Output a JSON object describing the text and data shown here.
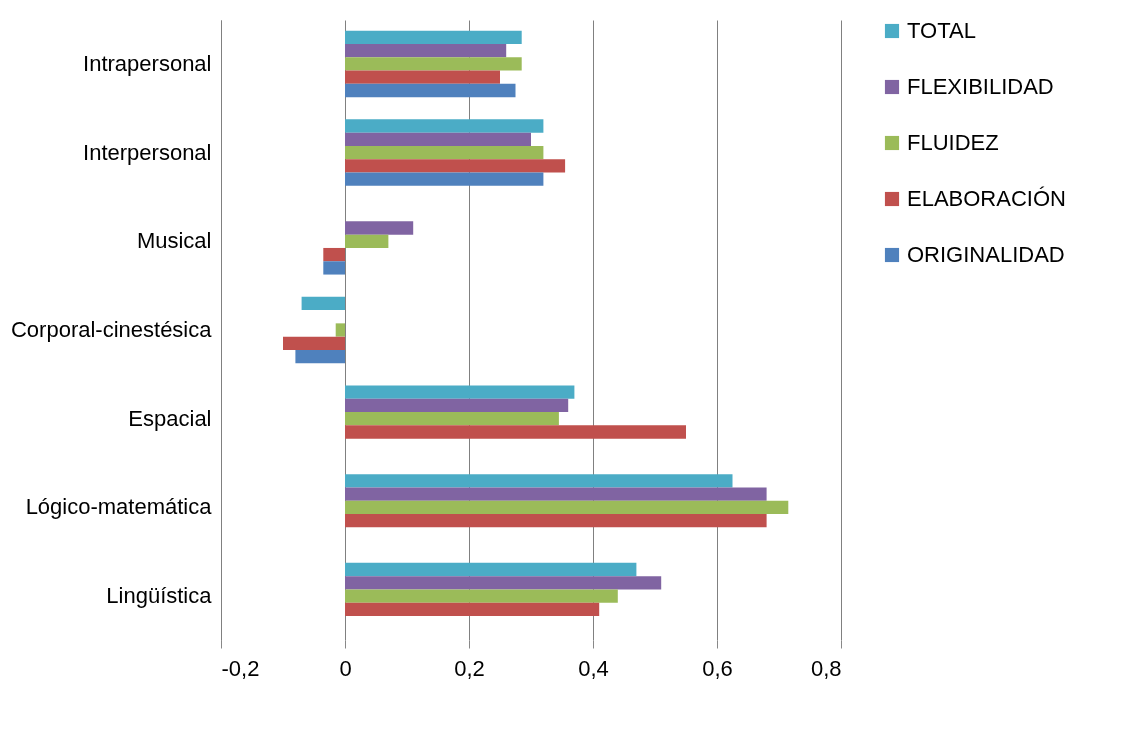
{
  "chart_data": {
    "type": "bar",
    "orientation": "horizontal",
    "categories": [
      "Intrapersonal",
      "Interpersonal",
      "Musical",
      "Corporal-cinestésica",
      "Espacial",
      "Lógico-matemática",
      "Lingüística"
    ],
    "series": [
      {
        "name": "TOTAL",
        "color": "#4bacc6",
        "values": [
          0.285,
          0.32,
          0,
          -0.07,
          0.37,
          0.625,
          0.47
        ]
      },
      {
        "name": "FLEXIBILIDAD",
        "color": "#8064a2",
        "values": [
          0.26,
          0.3,
          0.11,
          0,
          0.36,
          0.68,
          0.51
        ]
      },
      {
        "name": "FLUIDEZ",
        "color": "#9bbb59",
        "values": [
          0.285,
          0.32,
          0.07,
          -0.015,
          0.345,
          0.715,
          0.44
        ]
      },
      {
        "name": "ELABORACIÓN",
        "color": "#c0504d",
        "values": [
          0.25,
          0.355,
          -0.035,
          -0.1,
          0.55,
          0.68,
          0.41
        ]
      },
      {
        "name": "ORIGINALIDAD",
        "color": "#4f81bd",
        "values": [
          0.275,
          0.32,
          -0.035,
          -0.08,
          0,
          0,
          0
        ]
      }
    ],
    "xlim": [
      -0.2,
      0.8
    ],
    "xticks": [
      {
        "value": -0.2,
        "label": "-0,2"
      },
      0,
      {
        "value": 0.2,
        "label": "0,2"
      },
      {
        "value": 0.4,
        "label": "0,4"
      },
      {
        "value": 0.6,
        "label": "0,6"
      },
      {
        "value": 0.8,
        "label": "0,8"
      }
    ],
    "grid": "x",
    "legend": "right"
  }
}
